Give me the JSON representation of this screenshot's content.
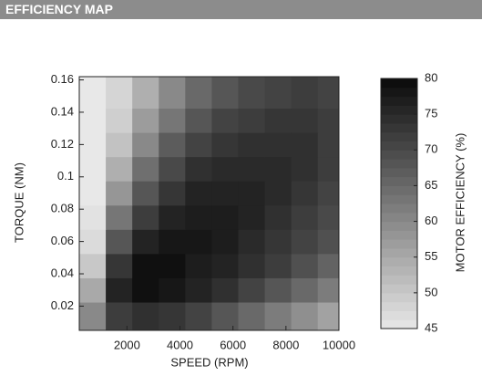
{
  "header": {
    "title": "EFFICIENCY MAP"
  },
  "chart_data": {
    "type": "heatmap",
    "xlabel": "SPEED (RPM)",
    "ylabel": "TORQUE (NM)",
    "x": [
      700,
      1700,
      2700,
      3700,
      4700,
      5700,
      6700,
      7700,
      8700,
      9700
    ],
    "y": [
      0.015,
      0.03,
      0.045,
      0.06,
      0.075,
      0.09,
      0.105,
      0.12,
      0.135,
      0.15
    ],
    "z": [
      [
        60,
        72,
        74,
        73,
        71,
        68,
        65,
        62,
        59,
        56
      ],
      [
        55,
        76,
        79,
        78,
        76,
        74,
        71,
        68,
        65,
        62
      ],
      [
        50,
        73,
        79,
        79,
        77,
        76,
        74,
        72,
        69,
        66
      ],
      [
        47,
        68,
        76,
        78,
        78,
        77,
        75,
        73,
        71,
        69
      ],
      [
        46,
        63,
        72,
        76,
        77,
        77,
        76,
        74,
        72,
        70
      ],
      [
        45,
        58,
        68,
        73,
        76,
        76,
        76,
        75,
        73,
        71
      ],
      [
        45,
        54,
        64,
        70,
        74,
        75,
        75,
        75,
        74,
        72
      ],
      [
        45,
        51,
        60,
        67,
        71,
        73,
        74,
        74,
        74,
        72
      ],
      [
        45,
        49,
        57,
        63,
        68,
        71,
        72,
        73,
        73,
        72
      ],
      [
        45,
        48,
        54,
        60,
        65,
        68,
        70,
        71,
        72,
        71
      ]
    ],
    "xlim": [
      200,
      10000
    ],
    "xticks": [
      2000,
      4000,
      6000,
      8000,
      10000
    ],
    "ylim": [
      0.005,
      0.162
    ],
    "yticks": [
      0.02,
      0.04,
      0.06,
      0.08,
      0.1,
      0.12,
      0.14,
      0.16
    ],
    "colorbar": {
      "label": "MOTOR EFFICIENCY (%)",
      "lim": [
        45,
        80
      ],
      "ticks": [
        45,
        50,
        55,
        60,
        65,
        70,
        75,
        80
      ]
    }
  }
}
